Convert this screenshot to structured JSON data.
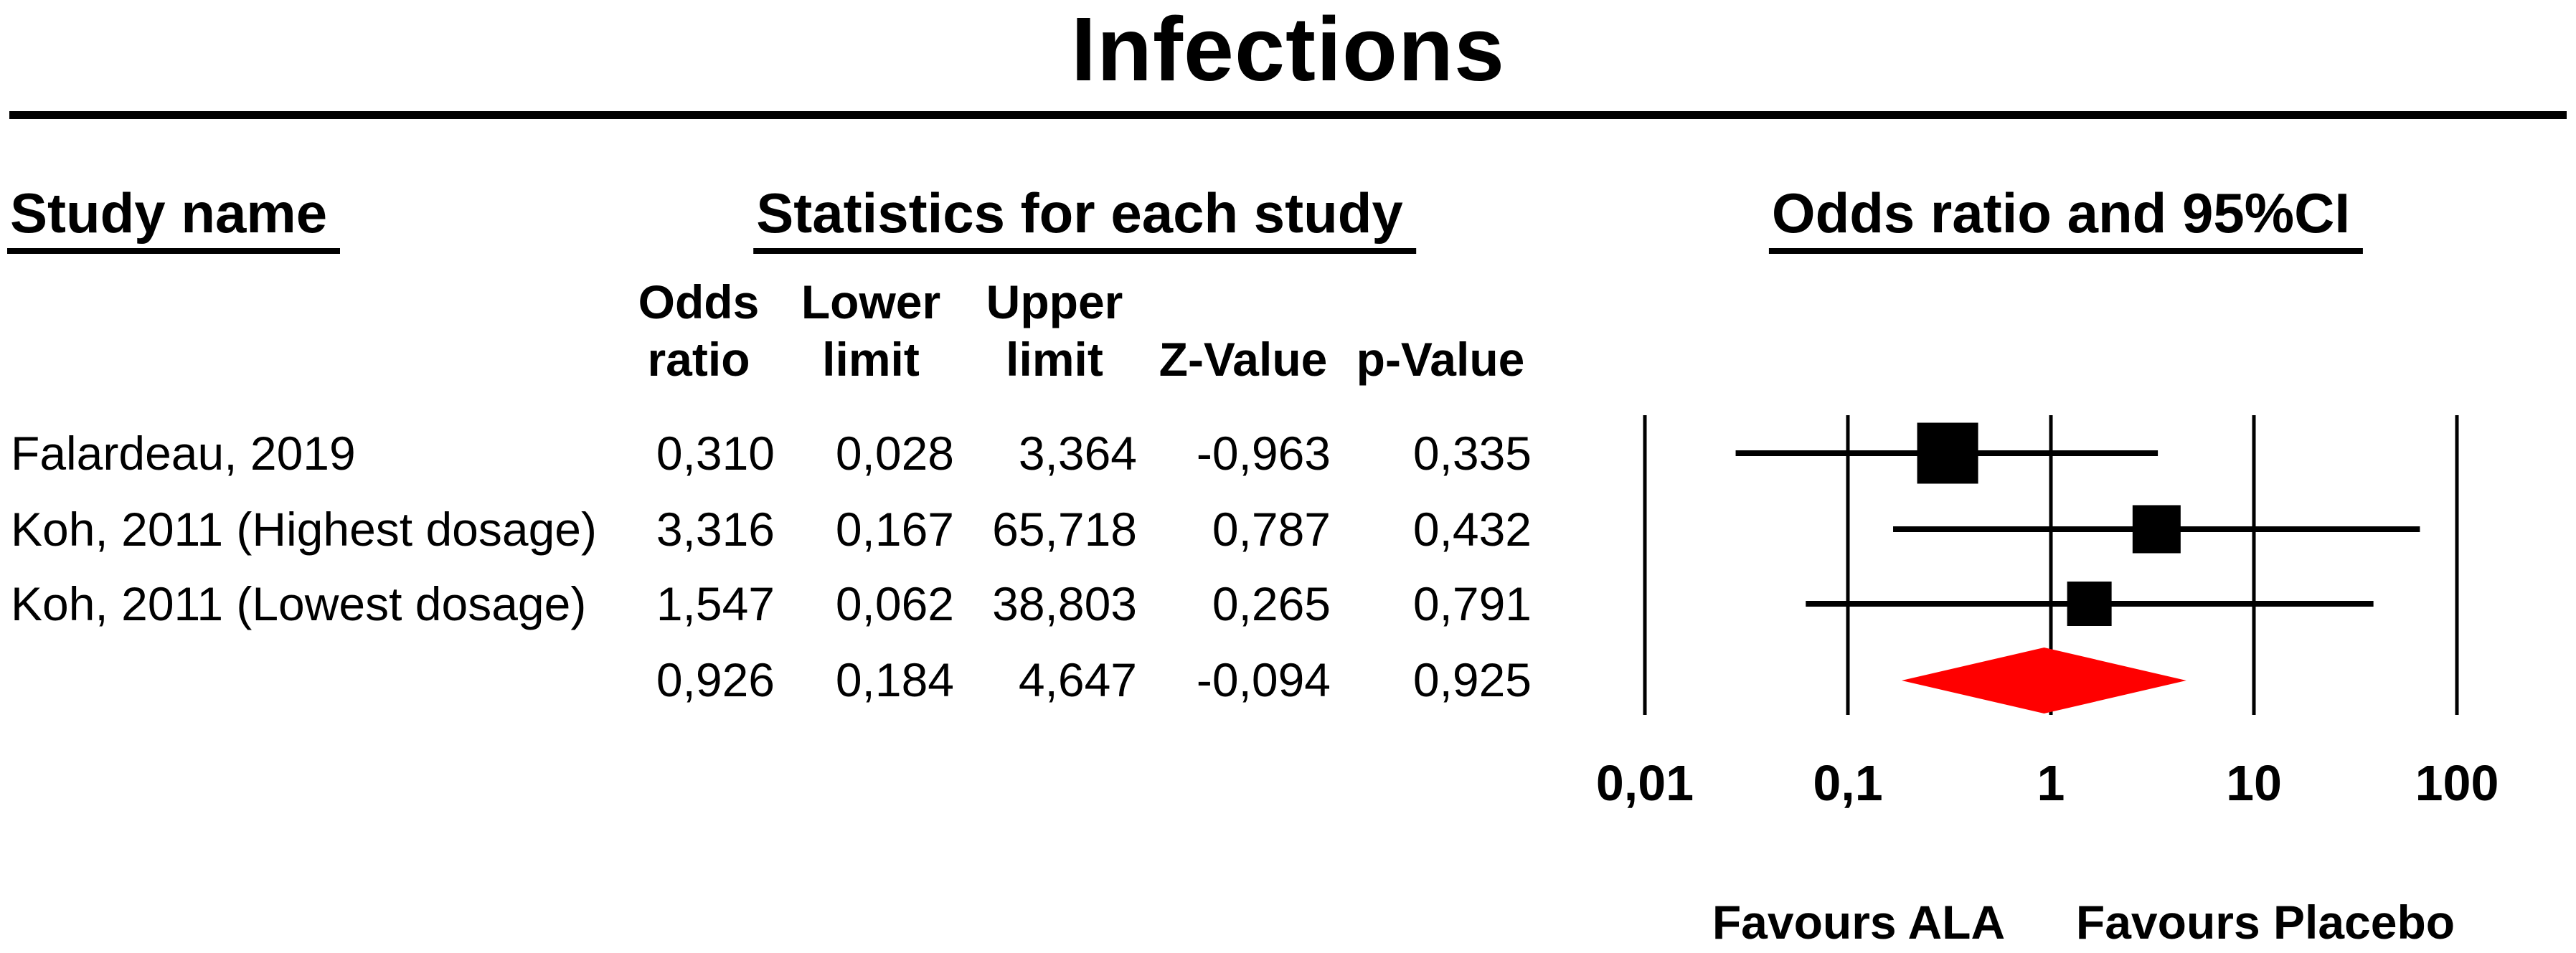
{
  "title": "Infections",
  "sections": {
    "study_header": "Study name",
    "stats_header": "Statistics for each study",
    "plot_header": "Odds ratio and 95%CI"
  },
  "columns": {
    "odds_l1": "Odds",
    "odds_l2": "ratio",
    "lower_l1": "Lower",
    "lower_l2": "limit",
    "upper_l1": "Upper",
    "upper_l2": "limit",
    "z": "Z-Value",
    "p": "p-Value"
  },
  "table": {
    "rows": [
      {
        "name": "Falardeau, 2019",
        "or": "0,310",
        "lower": "0,028",
        "upper": "3,364",
        "z": "-0,963",
        "p": "0,335"
      },
      {
        "name": "Koh, 2011 (Highest dosage)",
        "or": "3,316",
        "lower": "0,167",
        "upper": "65,718",
        "z": "0,787",
        "p": "0,432"
      },
      {
        "name": "Koh, 2011 (Lowest dosage)",
        "or": "1,547",
        "lower": "0,062",
        "upper": "38,803",
        "z": "0,265",
        "p": "0,791"
      },
      {
        "name": "",
        "or": "0,926",
        "lower": "0,184",
        "upper": "4,647",
        "z": "-0,094",
        "p": "0,925"
      }
    ]
  },
  "chart_data": {
    "type": "forest",
    "x_scale": "log10",
    "xlim": [
      0.01,
      100
    ],
    "x_ticks": [
      {
        "label": "0,01",
        "value": 0.01
      },
      {
        "label": "0,1",
        "value": 0.1
      },
      {
        "label": "1",
        "value": 1
      },
      {
        "label": "10",
        "value": 10
      },
      {
        "label": "100",
        "value": 100
      }
    ],
    "studies": [
      {
        "name": "Falardeau, 2019",
        "odds_ratio": 0.31,
        "lower": 0.028,
        "upper": 3.364,
        "z_value": -0.963,
        "p_value": 0.335,
        "marker_px": 85
      },
      {
        "name": "Koh, 2011 (Highest dosage)",
        "odds_ratio": 3.316,
        "lower": 0.167,
        "upper": 65.718,
        "z_value": 0.787,
        "p_value": 0.432,
        "marker_px": 67
      },
      {
        "name": "Koh, 2011 (Lowest dosage)",
        "odds_ratio": 1.547,
        "lower": 0.062,
        "upper": 38.803,
        "z_value": 0.265,
        "p_value": 0.791,
        "marker_px": 62
      }
    ],
    "summary": {
      "odds_ratio": 0.926,
      "lower": 0.184,
      "upper": 4.647,
      "z_value": -0.094,
      "p_value": 0.925
    },
    "marker_color": "#000000",
    "ci_line_color": "#000000",
    "summary_diamond_color": "#ff0000",
    "footer_left": "Favours ALA",
    "footer_right": "Favours Placebo"
  }
}
